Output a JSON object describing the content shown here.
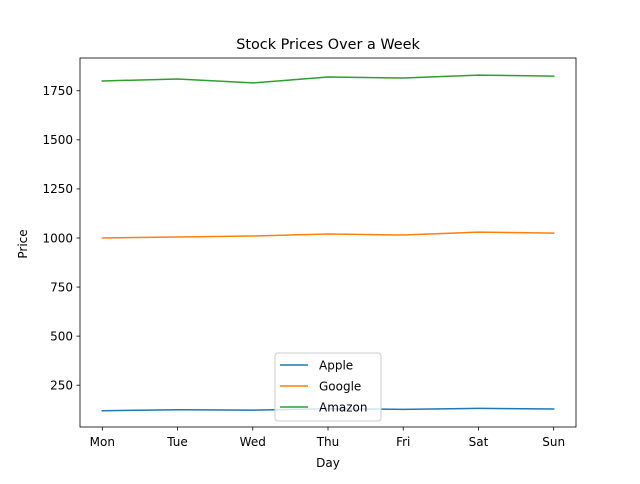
{
  "chart_data": {
    "type": "line",
    "title": "Stock Prices Over a Week",
    "xlabel": "Day",
    "ylabel": "Price",
    "categories": [
      "Mon",
      "Tue",
      "Wed",
      "Thu",
      "Fri",
      "Sat",
      "Sun"
    ],
    "y_ticks": [
      250,
      500,
      750,
      1000,
      1250,
      1500,
      1750
    ],
    "ylim": [
      37,
      1917
    ],
    "grid": false,
    "legend_position": "lower center",
    "series": [
      {
        "name": "Apple",
        "color": "#1f77b4",
        "values": [
          120,
          125,
          123,
          130,
          127,
          132,
          129
        ]
      },
      {
        "name": "Google",
        "color": "#ff7f0e",
        "values": [
          1000,
          1005,
          1010,
          1020,
          1015,
          1030,
          1025
        ]
      },
      {
        "name": "Amazon",
        "color": "#2ca02c",
        "values": [
          1800,
          1810,
          1790,
          1820,
          1815,
          1830,
          1825
        ]
      }
    ]
  }
}
